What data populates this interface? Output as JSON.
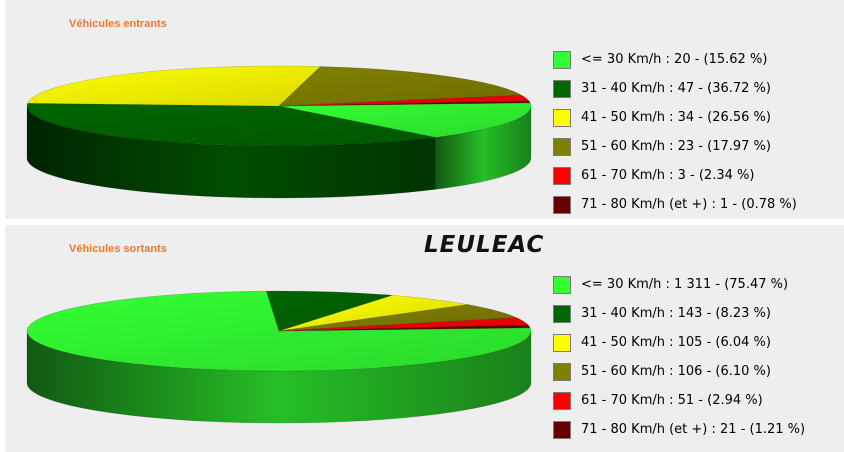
{
  "page": {
    "title": "LEULEAC"
  },
  "colors": {
    "panel_background": "#eeeeee",
    "panel_title": "#f0782a",
    "slice_colors": [
      "#33ff33",
      "#006600",
      "#ffff00",
      "#808000",
      "#ff0000",
      "#660000"
    ]
  },
  "chart_data": [
    {
      "type": "pie",
      "title": "Véhicules entrants",
      "style": "3d",
      "legend_position": "right",
      "categories": [
        "<= 30 Km/h",
        "31 - 40 Km/h",
        "41 - 50 Km/h",
        "51 - 60 Km/h",
        "61 - 70 Km/h",
        "71 - 80 Km/h (et +)"
      ],
      "values": [
        20,
        47,
        34,
        23,
        3,
        1
      ],
      "percentages": [
        15.62,
        36.72,
        26.56,
        17.97,
        2.34,
        0.78
      ],
      "legend": [
        "<= 30 Km/h :    20 -  (15.62 %)",
        "31 - 40 Km/h :    47 -  (36.72 %)",
        "41 - 50 Km/h :    34 -  (26.56 %)",
        "51 - 60 Km/h :    23 -  (17.97 %)",
        "61 - 70 Km/h :    3 -  (2.34 %)",
        "71 - 80 Km/h  (et +) :    1 -  (0.78 %)"
      ]
    },
    {
      "type": "pie",
      "title": "Véhicules sortants",
      "style": "3d",
      "legend_position": "right",
      "categories": [
        "<= 30 Km/h",
        "31 - 40 Km/h",
        "41 - 50 Km/h",
        "51 - 60 Km/h",
        "61 - 70 Km/h",
        "71 - 80 Km/h (et +)"
      ],
      "values": [
        1311,
        143,
        105,
        106,
        51,
        21
      ],
      "percentages": [
        75.47,
        8.23,
        6.04,
        6.1,
        2.94,
        1.21
      ],
      "legend": [
        "<= 30 Km/h : 1 311 -  (75.47 %)",
        "31 - 40 Km/h :   143 -  (8.23 %)",
        "41 - 50 Km/h :   105 -  (6.04 %)",
        "51 - 60 Km/h :   106 -  (6.10 %)",
        "61 - 70 Km/h :    51 -  (2.94 %)",
        "71 - 80 Km/h  (et +) :    21 -  (1.21 %)"
      ]
    }
  ]
}
